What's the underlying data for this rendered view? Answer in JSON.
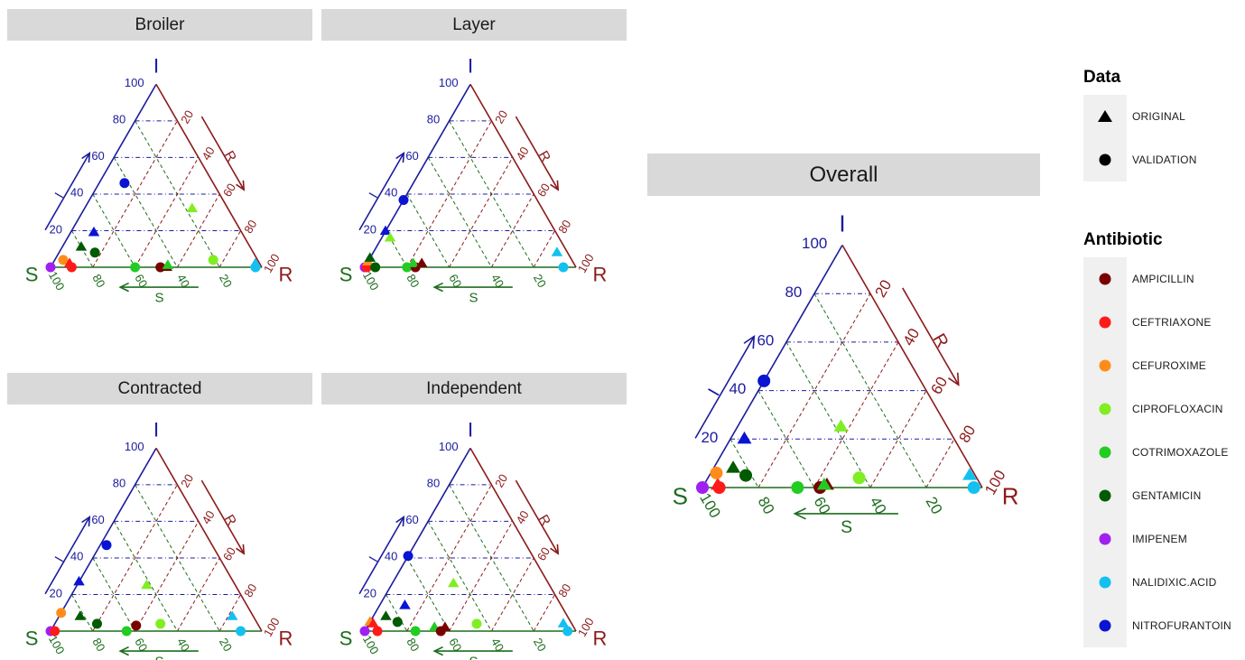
{
  "axis_letters": {
    "top": "I",
    "left": "S",
    "right": "R"
  },
  "arrow_labels": {
    "i": "I",
    "r": "R",
    "s": "S"
  },
  "ticks": [
    "20",
    "40",
    "60",
    "80",
    "100"
  ],
  "colors": {
    "i_axis": "#1b1b9e",
    "r_axis": "#8b1a1a",
    "s_axis": "#1d6d1d",
    "strip_bg": "#d9d9d9",
    "antibiotics": {
      "AMPICILLIN": "#7a0000",
      "CEFTRIAXONE": "#ff1a1a",
      "CEFUROXIME": "#ff8c1a",
      "CIPROFLOXACIN": "#80ee22",
      "COTRIMOXAZOLE": "#22cc22",
      "GENTAMICIN": "#005a00",
      "IMIPENEM": "#a020f0",
      "NALIDIXIC.ACID": "#14c0f0",
      "NITROFURANTOIN": "#0a14d2"
    }
  },
  "legend": {
    "data_title": "Data",
    "data_items": [
      {
        "label": "ORIGINAL",
        "shape": "triangle-icon"
      },
      {
        "label": "VALIDATION",
        "shape": "circle-icon"
      }
    ],
    "antibiotic_title": "Antibiotic",
    "antibiotic_items": [
      "AMPICILLIN",
      "CEFTRIAXONE",
      "CEFUROXIME",
      "CIPROFLOXACIN",
      "COTRIMOXAZOLE",
      "GENTAMICIN",
      "IMIPENEM",
      "NALIDIXIC.ACID",
      "NITROFURANTOIN"
    ]
  },
  "chart_data": [
    {
      "type": "scatter",
      "subtype": "ternary",
      "title": "Broiler",
      "axes": [
        "S",
        "I",
        "R"
      ],
      "points": [
        {
          "antibiotic": "IMIPENEM",
          "data": "VALIDATION",
          "S": 100,
          "I": 0,
          "R": 0
        },
        {
          "antibiotic": "CEFUROXIME",
          "data": "VALIDATION",
          "S": 92,
          "I": 4,
          "R": 4
        },
        {
          "antibiotic": "CEFTRIAXONE",
          "data": "VALIDATION",
          "S": 90,
          "I": 0,
          "R": 10
        },
        {
          "antibiotic": "CEFTRIAXONE",
          "data": "ORIGINAL",
          "S": 90,
          "I": 2,
          "R": 8
        },
        {
          "antibiotic": "GENTAMICIN",
          "data": "ORIGINAL",
          "S": 80,
          "I": 11,
          "R": 9
        },
        {
          "antibiotic": "GENTAMICIN",
          "data": "VALIDATION",
          "S": 75,
          "I": 8,
          "R": 17
        },
        {
          "antibiotic": "NITROFURANTOIN",
          "data": "ORIGINAL",
          "S": 70,
          "I": 19,
          "R": 11
        },
        {
          "antibiotic": "COTRIMOXAZOLE",
          "data": "VALIDATION",
          "S": 60,
          "I": 0,
          "R": 40
        },
        {
          "antibiotic": "AMPICILLIN",
          "data": "VALIDATION",
          "S": 48,
          "I": 0,
          "R": 52
        },
        {
          "antibiotic": "AMPICILLIN",
          "data": "ORIGINAL",
          "S": 45,
          "I": 0,
          "R": 55
        },
        {
          "antibiotic": "COTRIMOXAZOLE",
          "data": "ORIGINAL",
          "S": 44,
          "I": 1,
          "R": 55
        },
        {
          "antibiotic": "NITROFURANTOIN",
          "data": "VALIDATION",
          "S": 42,
          "I": 46,
          "R": 12
        },
        {
          "antibiotic": "CIPROFLOXACIN",
          "data": "ORIGINAL",
          "S": 17,
          "I": 32,
          "R": 51
        },
        {
          "antibiotic": "CIPROFLOXACIN",
          "data": "VALIDATION",
          "S": 21,
          "I": 4,
          "R": 75
        },
        {
          "antibiotic": "NALIDIXIC.ACID",
          "data": "ORIGINAL",
          "S": 2,
          "I": 2,
          "R": 96
        },
        {
          "antibiotic": "NALIDIXIC.ACID",
          "data": "VALIDATION",
          "S": 3,
          "I": 0,
          "R": 97
        }
      ]
    },
    {
      "type": "scatter",
      "subtype": "ternary",
      "title": "Layer",
      "axes": [
        "S",
        "I",
        "R"
      ],
      "points": [
        {
          "antibiotic": "IMIPENEM",
          "data": "VALIDATION",
          "S": 100,
          "I": 0,
          "R": 0
        },
        {
          "antibiotic": "CEFTRIAXONE",
          "data": "VALIDATION",
          "S": 99,
          "I": 0,
          "R": 1
        },
        {
          "antibiotic": "CEFUROXIME",
          "data": "ORIGINAL",
          "S": 98,
          "I": 3,
          "R": 0
        },
        {
          "antibiotic": "GENTAMICIN",
          "data": "ORIGINAL",
          "S": 96,
          "I": 5,
          "R": 0
        },
        {
          "antibiotic": "GENTAMICIN",
          "data": "VALIDATION",
          "S": 95,
          "I": 0,
          "R": 5
        },
        {
          "antibiotic": "NITROFURANTOIN",
          "data": "ORIGINAL",
          "S": 90,
          "I": 22,
          "R": 0
        },
        {
          "antibiotic": "CIPROFLOXACIN",
          "data": "ORIGINAL",
          "S": 80,
          "I": 16,
          "R": 4
        },
        {
          "antibiotic": "COTRIMOXAZOLE",
          "data": "VALIDATION",
          "S": 80,
          "I": 0,
          "R": 20
        },
        {
          "antibiotic": "AMPICILLIN",
          "data": "VALIDATION",
          "S": 76,
          "I": 0,
          "R": 24
        },
        {
          "antibiotic": "COTRIMOXAZOLE",
          "data": "ORIGINAL",
          "S": 76,
          "I": 2,
          "R": 22
        },
        {
          "antibiotic": "AMPICILLIN",
          "data": "ORIGINAL",
          "S": 72,
          "I": 2,
          "R": 26
        },
        {
          "antibiotic": "NITROFURANTOIN",
          "data": "VALIDATION",
          "S": 74,
          "I": 43,
          "R": 0
        },
        {
          "antibiotic": "NALIDIXIC.ACID",
          "data": "ORIGINAL",
          "S": 5,
          "I": 8,
          "R": 87
        },
        {
          "antibiotic": "NALIDIXIC.ACID",
          "data": "VALIDATION",
          "S": 6,
          "I": 0,
          "R": 94
        }
      ]
    },
    {
      "type": "scatter",
      "subtype": "ternary",
      "title": "Contracted",
      "axes": [
        "S",
        "I",
        "R"
      ],
      "points": [
        {
          "antibiotic": "IMIPENEM",
          "data": "VALIDATION",
          "S": 100,
          "I": 0,
          "R": 0
        },
        {
          "antibiotic": "CEFTRIAXONE",
          "data": "VALIDATION",
          "S": 98,
          "I": 0,
          "R": 2
        },
        {
          "antibiotic": "CEFUROXIME",
          "data": "VALIDATION",
          "S": 90,
          "I": 10,
          "R": 0
        },
        {
          "antibiotic": "GENTAMICIN",
          "data": "ORIGINAL",
          "S": 82,
          "I": 8,
          "R": 10
        },
        {
          "antibiotic": "GENTAMICIN",
          "data": "VALIDATION",
          "S": 76,
          "I": 4,
          "R": 20
        },
        {
          "antibiotic": "NITROFURANTOIN",
          "data": "ORIGINAL",
          "S": 76,
          "I": 28,
          "R": 0
        },
        {
          "antibiotic": "COTRIMOXAZOLE",
          "data": "VALIDATION",
          "S": 64,
          "I": 0,
          "R": 36
        },
        {
          "antibiotic": "AMPICILLIN",
          "data": "VALIDATION",
          "S": 58,
          "I": 3,
          "R": 39
        },
        {
          "antibiotic": "NITROFURANTOIN",
          "data": "VALIDATION",
          "S": 50,
          "I": 47,
          "R": 3
        },
        {
          "antibiotic": "CIPROFLOXACIN",
          "data": "ORIGINAL",
          "S": 42,
          "I": 25,
          "R": 33
        },
        {
          "antibiotic": "CIPROFLOXACIN",
          "data": "VALIDATION",
          "S": 46,
          "I": 4,
          "R": 50
        },
        {
          "antibiotic": "NALIDIXIC.ACID",
          "data": "ORIGINAL",
          "S": 10,
          "I": 8,
          "R": 82
        },
        {
          "antibiotic": "NALIDIXIC.ACID",
          "data": "VALIDATION",
          "S": 10,
          "I": 0,
          "R": 90
        }
      ]
    },
    {
      "type": "scatter",
      "subtype": "ternary",
      "title": "Independent",
      "axes": [
        "S",
        "I",
        "R"
      ],
      "points": [
        {
          "antibiotic": "IMIPENEM",
          "data": "VALIDATION",
          "S": 100,
          "I": 0,
          "R": 0
        },
        {
          "antibiotic": "CEFUROXIME",
          "data": "ORIGINAL",
          "S": 96,
          "I": 5,
          "R": 0
        },
        {
          "antibiotic": "CEFTRIAXONE",
          "data": "ORIGINAL",
          "S": 94,
          "I": 4,
          "R": 2
        },
        {
          "antibiotic": "CEFTRIAXONE",
          "data": "VALIDATION",
          "S": 94,
          "I": 0,
          "R": 6
        },
        {
          "antibiotic": "GENTAMICIN",
          "data": "ORIGINAL",
          "S": 86,
          "I": 8,
          "R": 6
        },
        {
          "antibiotic": "GENTAMICIN",
          "data": "VALIDATION",
          "S": 82,
          "I": 5,
          "R": 13
        },
        {
          "antibiotic": "COTRIMOXAZOLE",
          "data": "VALIDATION",
          "S": 76,
          "I": 0,
          "R": 24
        },
        {
          "antibiotic": "NITROFURANTOIN",
          "data": "ORIGINAL",
          "S": 74,
          "I": 14,
          "R": 12
        },
        {
          "antibiotic": "COTRIMOXAZOLE",
          "data": "ORIGINAL",
          "S": 66,
          "I": 2,
          "R": 32
        },
        {
          "antibiotic": "AMPICILLIN",
          "data": "VALIDATION",
          "S": 64,
          "I": 0,
          "R": 36
        },
        {
          "antibiotic": "AMPICILLIN",
          "data": "ORIGINAL",
          "S": 61,
          "I": 2,
          "R": 37
        },
        {
          "antibiotic": "NITROFURANTOIN",
          "data": "VALIDATION",
          "S": 66,
          "I": 46,
          "R": 0
        },
        {
          "antibiotic": "CIPROFLOXACIN",
          "data": "ORIGINAL",
          "S": 45,
          "I": 26,
          "R": 29
        },
        {
          "antibiotic": "CIPROFLOXACIN",
          "data": "VALIDATION",
          "S": 45,
          "I": 4,
          "R": 51
        },
        {
          "antibiotic": "NALIDIXIC.ACID",
          "data": "ORIGINAL",
          "S": 4,
          "I": 4,
          "R": 92
        },
        {
          "antibiotic": "NALIDIXIC.ACID",
          "data": "VALIDATION",
          "S": 4,
          "I": 0,
          "R": 96
        }
      ]
    },
    {
      "type": "scatter",
      "subtype": "ternary",
      "title": "Overall",
      "axes": [
        "S",
        "I",
        "R"
      ],
      "points": [
        {
          "antibiotic": "IMIPENEM",
          "data": "VALIDATION",
          "S": 100,
          "I": 0,
          "R": 0
        },
        {
          "antibiotic": "CEFTRIAXONE",
          "data": "ORIGINAL",
          "S": 94,
          "I": 1,
          "R": 5
        },
        {
          "antibiotic": "CEFTRIAXONE",
          "data": "VALIDATION",
          "S": 94,
          "I": 0,
          "R": 6
        },
        {
          "antibiotic": "CEFUROXIME",
          "data": "VALIDATION",
          "S": 92,
          "I": 6,
          "R": 2
        },
        {
          "antibiotic": "GENTAMICIN",
          "data": "ORIGINAL",
          "S": 85,
          "I": 8,
          "R": 7
        },
        {
          "antibiotic": "GENTAMICIN",
          "data": "VALIDATION",
          "S": 82,
          "I": 5,
          "R": 13
        },
        {
          "antibiotic": "NITROFURANTOIN",
          "data": "ORIGINAL",
          "S": 75,
          "I": 20,
          "R": 5
        },
        {
          "antibiotic": "COTRIMOXAZOLE",
          "data": "VALIDATION",
          "S": 66,
          "I": 0,
          "R": 34
        },
        {
          "antibiotic": "AMPICILLIN",
          "data": "VALIDATION",
          "S": 58,
          "I": 0,
          "R": 42
        },
        {
          "antibiotic": "AMPICILLIN",
          "data": "ORIGINAL",
          "S": 55,
          "I": 1,
          "R": 44
        },
        {
          "antibiotic": "COTRIMOXAZOLE",
          "data": "ORIGINAL",
          "S": 56,
          "I": 1,
          "R": 43
        },
        {
          "antibiotic": "NITROFURANTOIN",
          "data": "VALIDATION",
          "S": 56,
          "I": 44,
          "R": 0
        },
        {
          "antibiotic": "CIPROFLOXACIN",
          "data": "ORIGINAL",
          "S": 38,
          "I": 25,
          "R": 37
        },
        {
          "antibiotic": "CIPROFLOXACIN",
          "data": "VALIDATION",
          "S": 42,
          "I": 4,
          "R": 54
        },
        {
          "antibiotic": "NALIDIXIC.ACID",
          "data": "ORIGINAL",
          "S": 2,
          "I": 5,
          "R": 93
        },
        {
          "antibiotic": "NALIDIXIC.ACID",
          "data": "VALIDATION",
          "S": 3,
          "I": 0,
          "R": 97
        }
      ]
    }
  ]
}
